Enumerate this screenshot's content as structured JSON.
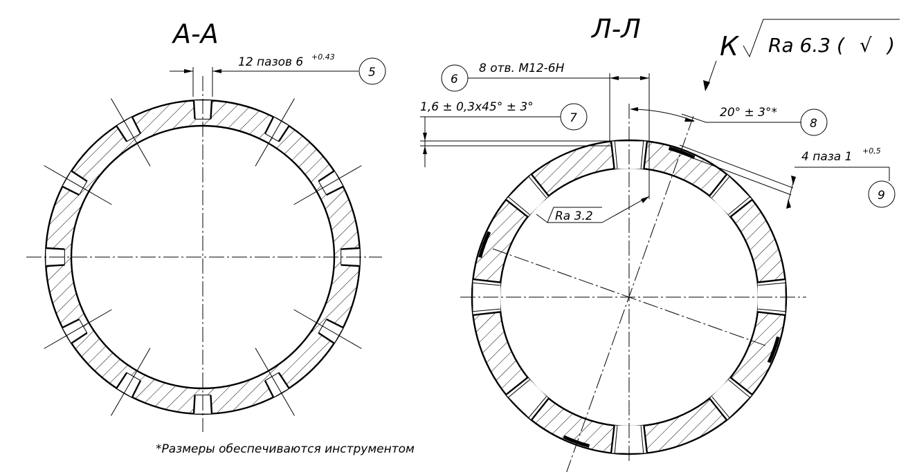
{
  "sections": {
    "left": {
      "title": "А-А",
      "slots_note": {
        "text": "12 пазов 6",
        "tol": "+0.43",
        "callout": "5"
      },
      "slot_count": 12
    },
    "right": {
      "title": "Л-Л",
      "roughness_general": {
        "letter": "К",
        "value": "Ra 6.3 (",
        "check": "√",
        "close": ")"
      },
      "holes_note": {
        "callout": "6",
        "text": "8 отв. М12-6Н"
      },
      "chamfer_note": {
        "text": "1,6 ± 0,3x45° ± 3°",
        "callout": "7"
      },
      "angle_note": {
        "text": "20° ± 3°*",
        "callout": "8"
      },
      "grooves_note": {
        "text": "4 паза 1",
        "tol": "+0,5",
        "callout": "9"
      },
      "hole_roughness": "Ra 3.2",
      "hole_count": 8
    }
  },
  "footnote": "*Размеры обеспечиваются инструментом"
}
